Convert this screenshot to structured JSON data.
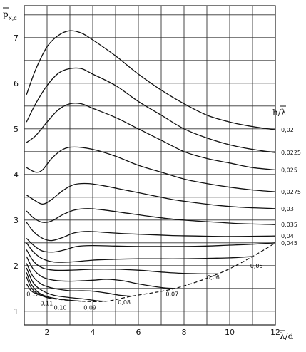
{
  "chart_data": {
    "type": "line",
    "y_axis_title": "p",
    "y_axis_subscript": "x,c",
    "x_axis_title": "λ/d",
    "legend_title": "h/λ",
    "xlim": [
      1,
      12
    ],
    "ylim": [
      0.7,
      7.7
    ],
    "x_ticks": [
      2,
      4,
      6,
      8,
      10,
      12
    ],
    "y_ticks": [
      1,
      2,
      3,
      4,
      5,
      6,
      7
    ],
    "grid": true,
    "series": [
      {
        "name": "0,02",
        "points": [
          [
            1.1,
            5.75
          ],
          [
            1.5,
            6.3
          ],
          [
            2.0,
            6.8
          ],
          [
            2.5,
            7.05
          ],
          [
            3.0,
            7.15
          ],
          [
            3.5,
            7.1
          ],
          [
            4.0,
            6.95
          ],
          [
            5.0,
            6.6
          ],
          [
            6.0,
            6.2
          ],
          [
            7.0,
            5.85
          ],
          [
            8.0,
            5.55
          ],
          [
            9.0,
            5.3
          ],
          [
            10.0,
            5.15
          ],
          [
            11.0,
            5.05
          ],
          [
            12.0,
            4.98
          ]
        ]
      },
      {
        "name": "0,0225",
        "points": [
          [
            1.1,
            5.15
          ],
          [
            1.5,
            5.55
          ],
          [
            2.0,
            5.95
          ],
          [
            2.5,
            6.22
          ],
          [
            3.0,
            6.32
          ],
          [
            3.5,
            6.32
          ],
          [
            4.0,
            6.2
          ],
          [
            5.0,
            5.95
          ],
          [
            6.0,
            5.6
          ],
          [
            7.0,
            5.3
          ],
          [
            8.0,
            5.0
          ],
          [
            9.0,
            4.8
          ],
          [
            10.0,
            4.65
          ],
          [
            11.0,
            4.55
          ],
          [
            12.0,
            4.48
          ]
        ]
      },
      {
        "name": "0,025",
        "points": [
          [
            1.1,
            4.7
          ],
          [
            1.5,
            4.85
          ],
          [
            2.0,
            5.15
          ],
          [
            2.5,
            5.42
          ],
          [
            3.0,
            5.55
          ],
          [
            3.5,
            5.55
          ],
          [
            4.0,
            5.45
          ],
          [
            5.0,
            5.25
          ],
          [
            6.0,
            5.0
          ],
          [
            7.0,
            4.75
          ],
          [
            8.0,
            4.5
          ],
          [
            9.0,
            4.35
          ],
          [
            10.0,
            4.25
          ],
          [
            11.0,
            4.15
          ],
          [
            12.0,
            4.1
          ]
        ]
      },
      {
        "name": "0,0275",
        "points": [
          [
            1.1,
            4.15
          ],
          [
            1.5,
            4.05
          ],
          [
            1.8,
            4.1
          ],
          [
            2.2,
            4.35
          ],
          [
            2.7,
            4.55
          ],
          [
            3.2,
            4.6
          ],
          [
            4.0,
            4.55
          ],
          [
            5.0,
            4.4
          ],
          [
            6.0,
            4.2
          ],
          [
            7.0,
            4.05
          ],
          [
            8.0,
            3.9
          ],
          [
            9.0,
            3.8
          ],
          [
            10.0,
            3.72
          ],
          [
            11.0,
            3.66
          ],
          [
            12.0,
            3.62
          ]
        ]
      },
      {
        "name": "0,03",
        "points": [
          [
            1.1,
            3.55
          ],
          [
            1.4,
            3.45
          ],
          [
            1.8,
            3.35
          ],
          [
            2.2,
            3.45
          ],
          [
            2.7,
            3.65
          ],
          [
            3.2,
            3.78
          ],
          [
            3.8,
            3.8
          ],
          [
            4.5,
            3.75
          ],
          [
            5.5,
            3.65
          ],
          [
            6.5,
            3.55
          ],
          [
            7.5,
            3.45
          ],
          [
            8.5,
            3.38
          ],
          [
            9.5,
            3.32
          ],
          [
            10.5,
            3.28
          ],
          [
            12.0,
            3.25
          ]
        ]
      },
      {
        "name": "0,035",
        "points": [
          [
            1.1,
            3.2
          ],
          [
            1.4,
            3.05
          ],
          [
            1.8,
            2.95
          ],
          [
            2.2,
            2.98
          ],
          [
            2.7,
            3.12
          ],
          [
            3.2,
            3.22
          ],
          [
            3.8,
            3.25
          ],
          [
            4.5,
            3.22
          ],
          [
            5.5,
            3.15
          ],
          [
            6.5,
            3.08
          ],
          [
            7.5,
            3.02
          ],
          [
            8.5,
            2.98
          ],
          [
            9.5,
            2.95
          ],
          [
            10.5,
            2.92
          ],
          [
            12.0,
            2.9
          ]
        ]
      },
      {
        "name": "0,04",
        "points": [
          [
            1.1,
            2.95
          ],
          [
            1.4,
            2.75
          ],
          [
            1.8,
            2.6
          ],
          [
            2.2,
            2.55
          ],
          [
            2.7,
            2.62
          ],
          [
            3.2,
            2.72
          ],
          [
            3.8,
            2.75
          ],
          [
            4.5,
            2.73
          ],
          [
            5.5,
            2.7
          ],
          [
            6.5,
            2.68
          ],
          [
            7.5,
            2.66
          ],
          [
            8.5,
            2.65
          ],
          [
            9.5,
            2.64
          ],
          [
            10.5,
            2.64
          ],
          [
            12.0,
            2.65
          ]
        ]
      },
      {
        "name": "0,045",
        "points": [
          [
            1.1,
            2.6
          ],
          [
            1.4,
            2.45
          ],
          [
            1.8,
            2.32
          ],
          [
            2.3,
            2.3
          ],
          [
            2.8,
            2.35
          ],
          [
            3.3,
            2.42
          ],
          [
            4.0,
            2.44
          ],
          [
            5.0,
            2.43
          ],
          [
            6.0,
            2.42
          ],
          [
            7.0,
            2.42
          ],
          [
            8.0,
            2.42
          ],
          [
            9.0,
            2.43
          ],
          [
            10.0,
            2.45
          ],
          [
            11.0,
            2.47
          ],
          [
            12.0,
            2.5
          ]
        ]
      },
      {
        "name": "0,05",
        "points": [
          [
            1.1,
            2.5
          ],
          [
            1.4,
            2.3
          ],
          [
            1.8,
            2.15
          ],
          [
            2.3,
            2.08
          ],
          [
            3.0,
            2.08
          ],
          [
            4.0,
            2.12
          ],
          [
            5.0,
            2.14
          ],
          [
            6.0,
            2.15
          ],
          [
            7.0,
            2.15
          ],
          [
            8.0,
            2.15
          ],
          [
            9.0,
            2.16
          ],
          [
            10.0,
            2.17
          ],
          [
            11.0,
            2.2
          ]
        ]
      },
      {
        "name": "0,06",
        "points": [
          [
            1.1,
            2.35
          ],
          [
            1.4,
            2.1
          ],
          [
            1.8,
            1.95
          ],
          [
            2.3,
            1.9
          ],
          [
            3.0,
            1.9
          ],
          [
            4.0,
            1.92
          ],
          [
            5.0,
            1.92
          ],
          [
            6.0,
            1.9
          ],
          [
            7.0,
            1.86
          ],
          [
            8.0,
            1.83
          ],
          [
            9.0,
            1.82
          ],
          [
            9.5,
            1.82
          ]
        ]
      },
      {
        "name": "0,07",
        "points": [
          [
            1.1,
            2.2
          ],
          [
            1.4,
            1.92
          ],
          [
            1.8,
            1.75
          ],
          [
            2.3,
            1.68
          ],
          [
            3.0,
            1.66
          ],
          [
            4.0,
            1.68
          ],
          [
            4.6,
            1.7
          ],
          [
            5.3,
            1.67
          ],
          [
            6.0,
            1.6
          ],
          [
            7.0,
            1.52
          ],
          [
            7.6,
            1.5
          ]
        ]
      },
      {
        "name": "0,08",
        "points": [
          [
            1.1,
            2.05
          ],
          [
            1.4,
            1.75
          ],
          [
            1.8,
            1.58
          ],
          [
            2.3,
            1.5
          ],
          [
            3.0,
            1.45
          ],
          [
            3.5,
            1.45
          ],
          [
            4.0,
            1.44
          ],
          [
            4.6,
            1.4
          ],
          [
            5.2,
            1.35
          ],
          [
            5.7,
            1.33
          ]
        ]
      },
      {
        "name": "0,09",
        "points": [
          [
            1.1,
            1.95
          ],
          [
            1.4,
            1.62
          ],
          [
            1.8,
            1.45
          ],
          [
            2.3,
            1.35
          ],
          [
            3.0,
            1.3
          ],
          [
            3.6,
            1.27
          ],
          [
            4.2,
            1.23
          ],
          [
            4.6,
            1.22
          ]
        ]
      },
      {
        "name": "0,10",
        "points": [
          [
            1.1,
            1.85
          ],
          [
            1.3,
            1.6
          ],
          [
            1.6,
            1.42
          ],
          [
            2.0,
            1.32
          ],
          [
            2.5,
            1.27
          ],
          [
            3.0,
            1.24
          ],
          [
            3.5,
            1.22
          ]
        ]
      },
      {
        "name": "0,11",
        "points": [
          [
            1.1,
            1.75
          ],
          [
            1.3,
            1.52
          ],
          [
            1.6,
            1.38
          ],
          [
            2.0,
            1.3
          ],
          [
            2.2,
            1.28
          ]
        ]
      },
      {
        "name": "0,12",
        "points": [
          [
            1.1,
            1.6
          ],
          [
            1.3,
            1.45
          ],
          [
            1.6,
            1.37
          ],
          [
            1.8,
            1.35
          ]
        ]
      }
    ],
    "boundary_dashed": [
      [
        1.8,
        1.35
      ],
      [
        2.2,
        1.28
      ],
      [
        3.5,
        1.22
      ],
      [
        4.6,
        1.22
      ],
      [
        5.7,
        1.33
      ],
      [
        7.6,
        1.5
      ],
      [
        9.5,
        1.82
      ],
      [
        11.0,
        2.2
      ],
      [
        12.0,
        2.5
      ]
    ],
    "labels": [
      {
        "text": "0,02",
        "x": 12.25,
        "y": 4.98
      },
      {
        "text": "0,0225",
        "x": 12.25,
        "y": 4.48
      },
      {
        "text": "0,025",
        "x": 12.25,
        "y": 4.1
      },
      {
        "text": "0,0275",
        "x": 12.25,
        "y": 3.62
      },
      {
        "text": "0,03",
        "x": 12.25,
        "y": 3.25
      },
      {
        "text": "0,035",
        "x": 12.25,
        "y": 2.9
      },
      {
        "text": "0,04",
        "x": 12.25,
        "y": 2.65
      },
      {
        "text": "0,045",
        "x": 12.25,
        "y": 2.5
      },
      {
        "text": "0,05",
        "x": 10.9,
        "y": 2.0
      },
      {
        "text": "0,06",
        "x": 9.0,
        "y": 1.75
      },
      {
        "text": "0,07",
        "x": 7.2,
        "y": 1.38
      },
      {
        "text": "0,08",
        "x": 5.1,
        "y": 1.2
      },
      {
        "text": "0,09",
        "x": 3.6,
        "y": 1.08
      },
      {
        "text": "0,10",
        "x": 2.3,
        "y": 1.08
      },
      {
        "text": "0,11",
        "x": 1.7,
        "y": 1.18
      },
      {
        "text": "0,12",
        "x": 1.1,
        "y": 1.38
      }
    ]
  }
}
